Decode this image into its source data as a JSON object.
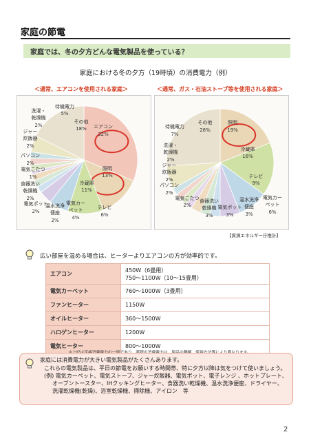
{
  "page": {
    "title": "家庭の節電",
    "question": "家庭では、冬の夕方どんな電気製品を使っている？",
    "chart_title": "家庭における冬の夕方（19時頃）の消費電力（例）",
    "subtitle_left": "＜通常、エアコンを使用される家庭＞",
    "subtitle_right": "＜通常、ガス・石油ストーブ等を使用される家庭＞",
    "source": "【資源エネルギー庁推計】",
    "page_number": "2",
    "highlight_color": "#d9342b"
  },
  "chart_data": [
    {
      "type": "pie",
      "title": "＜通常、エアコンを使用される家庭＞",
      "slices": [
        {
          "label": "エアコン",
          "value": 32,
          "color": "#f3c6ba"
        },
        {
          "label": "照明",
          "value": 13,
          "color": "#ead7b5"
        },
        {
          "label": "冷蔵庫",
          "value": 11,
          "color": "#cfe1a4"
        },
        {
          "label": "テレビ",
          "value": 6,
          "color": "#bfd8e8"
        },
        {
          "label": "電気カーペット",
          "value": 4,
          "color": "#d7cce6"
        },
        {
          "label": "温水洗浄便座",
          "value": 2,
          "color": "#cfe0ef"
        },
        {
          "label": "電気ポット",
          "value": 2,
          "color": "#d6e8d6"
        },
        {
          "label": "食器洗い乾燥機",
          "value": 2,
          "color": "#f0dcc0"
        },
        {
          "label": "電気こたつ",
          "value": 1,
          "color": "#e6d8ec"
        },
        {
          "label": "パソコン",
          "value": 2,
          "color": "#dde8c8"
        },
        {
          "label": "ジャー炊飯器",
          "value": 2,
          "color": "#f2d4cc"
        },
        {
          "label": "洗濯・乾燥機",
          "value": 2,
          "color": "#cce2e4"
        },
        {
          "label": "待機電力",
          "value": 5,
          "color": "#ebe6c4"
        },
        {
          "label": "その他",
          "value": 18,
          "color": "#e9e1cf"
        }
      ],
      "labels": {
        "aircon": "エアコン",
        "aircon_pct": "32%",
        "light": "照明",
        "light_pct": "13%",
        "fridge": "冷蔵庫",
        "fridge_pct": "11%",
        "tv": "テレビ",
        "tv_pct": "6%",
        "carpet1": "電気カー",
        "carpet2": "ペット",
        "carpet_pct": "4%",
        "toilet1": "温水洗浄",
        "toilet2": "便座",
        "toilet_pct": "2%",
        "pot": "電気ポット",
        "pot_pct": "2%",
        "dish1": "食器洗い",
        "dish2": "乾燥機",
        "dish_pct": "2%",
        "kotatsu": "電気こたつ",
        "kotatsu_pct": "1%",
        "pc": "パソコン",
        "pc_pct": "2%",
        "rice1": "ジャー",
        "rice2": "炊飯器",
        "rice_pct": "2%",
        "wash1": "洗濯・",
        "wash2": "乾燥機",
        "wash_pct": "2%",
        "standby": "待機電力",
        "standby_pct": "5%",
        "other": "その他",
        "other_pct": "18%"
      },
      "highlighted": [
        "エアコン",
        "照明"
      ]
    },
    {
      "type": "pie",
      "title": "＜通常、ガス・石油ストーブ等を使用される家庭＞",
      "slices": [
        {
          "label": "照明",
          "value": 19,
          "color": "#ead7b5"
        },
        {
          "label": "冷蔵庫",
          "value": 16,
          "color": "#cfe1a4"
        },
        {
          "label": "テレビ",
          "value": 9,
          "color": "#bfd8e8"
        },
        {
          "label": "電気カーペット",
          "value": 6,
          "color": "#d7cce6"
        },
        {
          "label": "温水洗浄便座",
          "value": 3,
          "color": "#cfe0ef"
        },
        {
          "label": "電気ポット",
          "value": 3,
          "color": "#d6e8d6"
        },
        {
          "label": "食器洗い乾燥機",
          "value": 3,
          "color": "#f0dcc0"
        },
        {
          "label": "電気こたつ",
          "value": 2,
          "color": "#e6d8ec"
        },
        {
          "label": "パソコン",
          "value": 2,
          "color": "#dde8c8"
        },
        {
          "label": "ジャー炊飯器",
          "value": 2,
          "color": "#f2d4cc"
        },
        {
          "label": "洗濯・乾燥機",
          "value": 2,
          "color": "#cce2e4"
        },
        {
          "label": "待機電力",
          "value": 7,
          "color": "#ebe6c4"
        },
        {
          "label": "その他",
          "value": 26,
          "color": "#e9e1cf"
        }
      ],
      "labels": {
        "light": "照明",
        "light_pct": "19%",
        "fridge": "冷蔵庫",
        "fridge_pct": "16%",
        "tv": "テレビ",
        "tv_pct": "9%",
        "carpet1": "電気カー",
        "carpet2": "ペット",
        "carpet_pct": "6%",
        "toilet1": "温水洗浄",
        "toilet2": "便座",
        "toilet_pct": "3%",
        "pot": "電気ポット",
        "pot_pct": "3%",
        "dish1": "食器洗い",
        "dish2": "乾燥機",
        "dish_pct": "3%",
        "kotatsu": "電気こたつ",
        "kotatsu_pct": "2%",
        "pc": "パソコン",
        "pc_pct": "2%",
        "rice1": "ジャー",
        "rice2": "炊飯器",
        "rice_pct": "2%",
        "wash1": "洗濯・",
        "wash2": "乾燥機",
        "wash_pct": "2%",
        "standby": "待機電力",
        "standby_pct": "7%",
        "other": "その他",
        "other_pct": "26%"
      },
      "highlighted": [
        "照明"
      ]
    }
  ],
  "heater_table": {
    "title": "広い部屋を温める場合は、ヒーターよりエアコンの方が効率的です。",
    "rows": [
      {
        "name": "エアコン",
        "value": "450W（6畳用）",
        "value2": "750～1100W（10～15畳用）"
      },
      {
        "name": "電気カーペット",
        "value": "760～1000W（3畳用）",
        "value2": ""
      },
      {
        "name": "ファンヒーター",
        "value": "1150W",
        "value2": ""
      },
      {
        "name": "オイルヒーター",
        "value": "360～1500W",
        "value2": ""
      },
      {
        "name": "ハロゲンヒーター",
        "value": "1200W",
        "value2": ""
      },
      {
        "name": "電気ヒーター",
        "value": "800～1000W",
        "value2": ""
      }
    ],
    "note": "※上記は定格消費電力の一例であり、実際の消費電力は、製品の種類、使用方法等により異なります。"
  },
  "tips": {
    "line1": "家庭には消費電力が大きい電気製品がたくさんあります。",
    "line2": "これらの電気製品は、平日の節電をお願いする時間帯、特に夕方以降は気をつけて使いましょう。",
    "line3": "(例) 電気カーペット、電気ストーブ、ジャー炊飯器、電気ポット、電子レンジ 、ホットプレート、",
    "line4": "オーブントースター、IHクッキングヒーター、食器洗い乾燥機、温水洗浄便座、ドライヤー、",
    "line5": "洗濯乾燥機(乾燥)、浴室乾燥機、掃除機、アイロン　等"
  }
}
